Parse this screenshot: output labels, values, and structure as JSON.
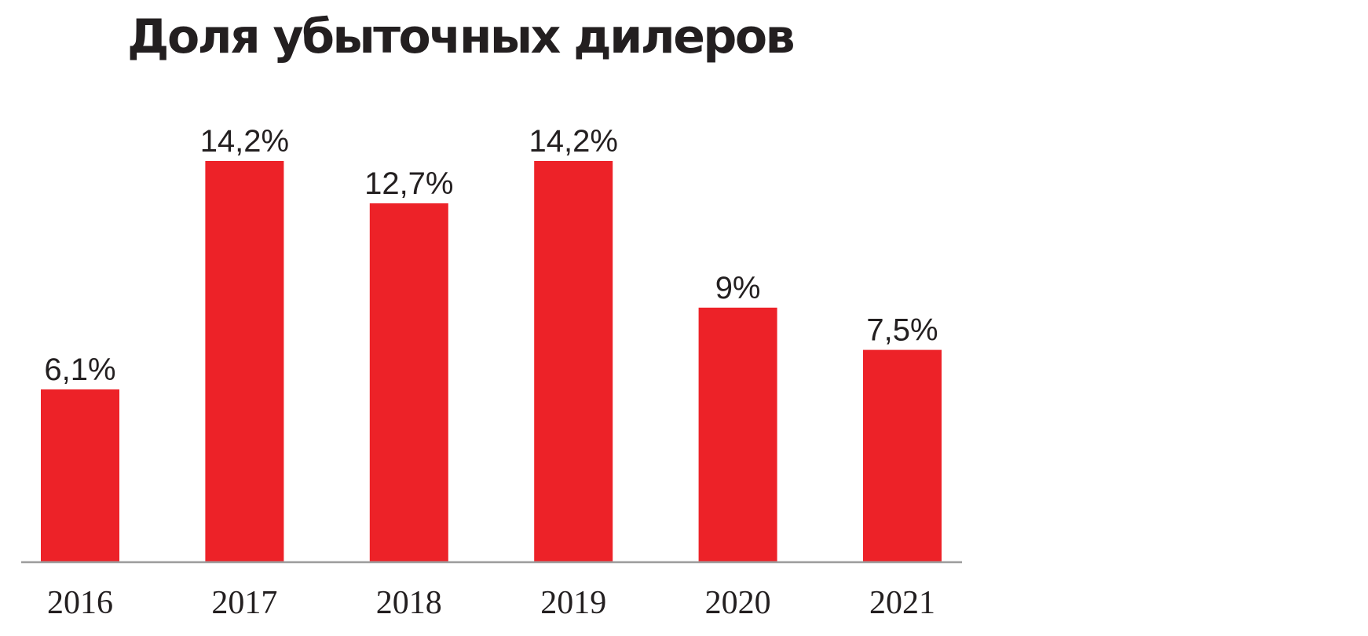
{
  "chart_data": {
    "type": "bar",
    "title": "Доля убыточных дилеров",
    "categories": [
      "2016",
      "2017",
      "2018",
      "2019",
      "2020",
      "2021"
    ],
    "values": [
      6.1,
      14.2,
      12.7,
      14.2,
      9,
      7.5
    ],
    "data_labels": [
      "6,1%",
      "14,2%",
      "12,7%",
      "14,2%",
      "9%",
      "7,5%"
    ],
    "unit": "%",
    "ylim": [
      0,
      14.2
    ],
    "grid": false,
    "legend": "none",
    "colors": {
      "bar": "#ed2228",
      "axis": "#9d9d9d",
      "text": "#231f20"
    }
  }
}
